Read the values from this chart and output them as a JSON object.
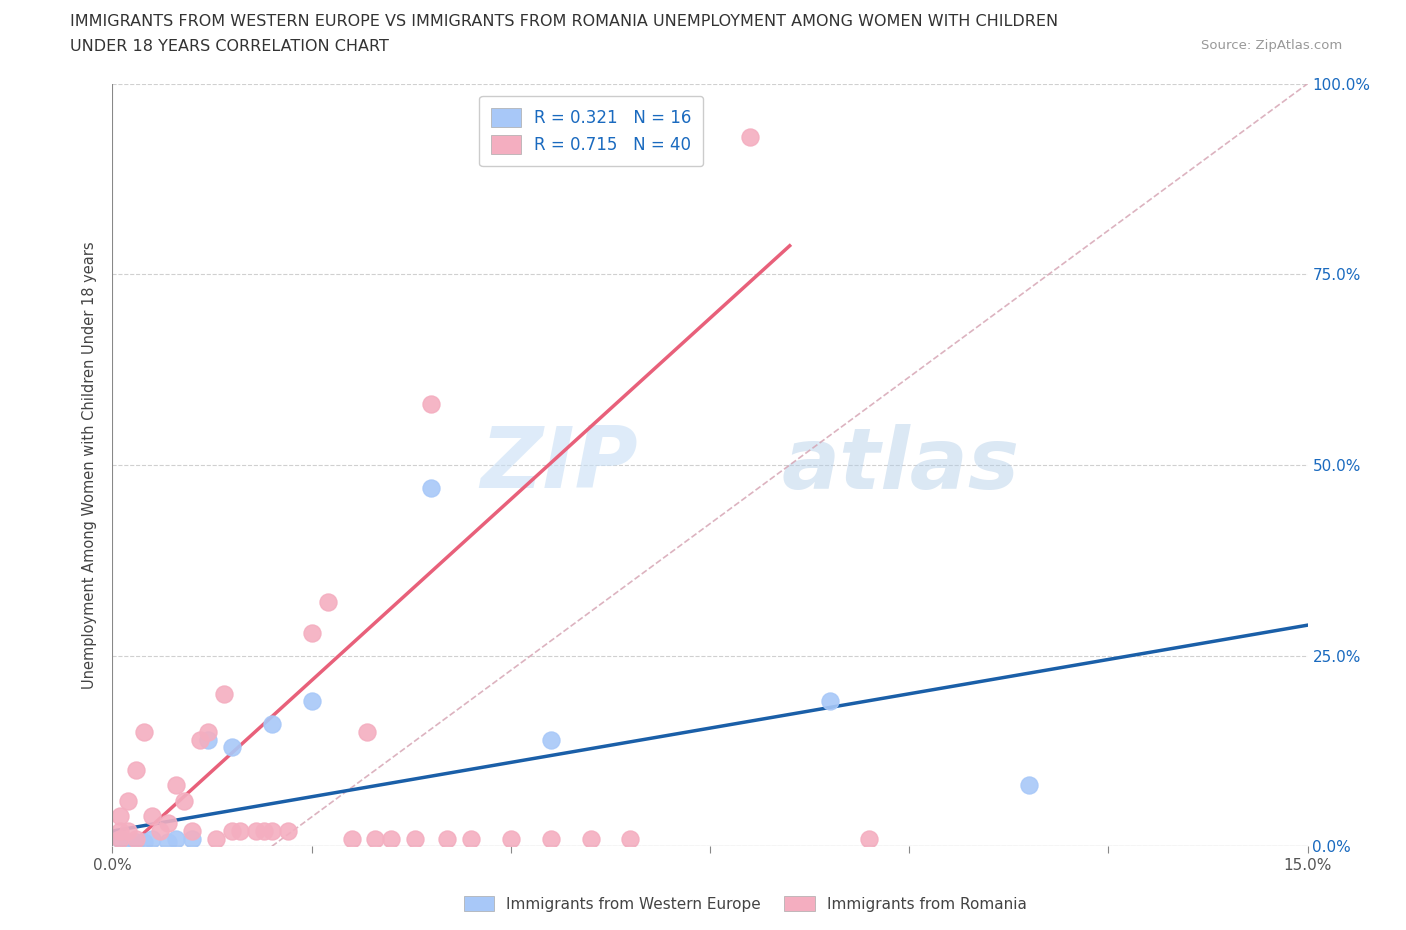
{
  "title_line1": "IMMIGRANTS FROM WESTERN EUROPE VS IMMIGRANTS FROM ROMANIA UNEMPLOYMENT AMONG WOMEN WITH CHILDREN",
  "title_line2": "UNDER 18 YEARS CORRELATION CHART",
  "source": "Source: ZipAtlas.com",
  "ylabel": "Unemployment Among Women with Children Under 18 years",
  "xlim": [
    0,
    0.15
  ],
  "ylim": [
    0,
    1.0
  ],
  "xticks": [
    0.0,
    0.025,
    0.05,
    0.075,
    0.1,
    0.125,
    0.15
  ],
  "yticks": [
    0.0,
    0.25,
    0.5,
    0.75,
    1.0
  ],
  "blue_color": "#a8c8f8",
  "pink_color": "#f4aec0",
  "blue_line_color": "#1a5fa8",
  "pink_line_color": "#e8607a",
  "diag_line_color": "#e8b0c0",
  "blue_R": 0.321,
  "blue_N": 16,
  "pink_R": 0.715,
  "pink_N": 40,
  "we_x": [
    0.001,
    0.002,
    0.003,
    0.004,
    0.005,
    0.007,
    0.008,
    0.01,
    0.012,
    0.015,
    0.02,
    0.025,
    0.04,
    0.055,
    0.09,
    0.115
  ],
  "we_y": [
    0.01,
    0.005,
    0.005,
    0.005,
    0.01,
    0.005,
    0.01,
    0.01,
    0.14,
    0.13,
    0.16,
    0.19,
    0.47,
    0.14,
    0.19,
    0.08
  ],
  "ro_x": [
    0.001,
    0.001,
    0.001,
    0.002,
    0.002,
    0.003,
    0.003,
    0.004,
    0.005,
    0.006,
    0.007,
    0.008,
    0.009,
    0.01,
    0.011,
    0.012,
    0.013,
    0.014,
    0.015,
    0.016,
    0.018,
    0.019,
    0.02,
    0.022,
    0.025,
    0.027,
    0.03,
    0.032,
    0.033,
    0.035,
    0.038,
    0.04,
    0.042,
    0.045,
    0.05,
    0.055,
    0.06,
    0.065,
    0.08,
    0.095
  ],
  "ro_y": [
    0.01,
    0.02,
    0.04,
    0.02,
    0.06,
    0.01,
    0.1,
    0.15,
    0.04,
    0.02,
    0.03,
    0.08,
    0.06,
    0.02,
    0.14,
    0.15,
    0.01,
    0.2,
    0.02,
    0.02,
    0.02,
    0.02,
    0.02,
    0.02,
    0.28,
    0.32,
    0.01,
    0.15,
    0.01,
    0.01,
    0.01,
    0.58,
    0.01,
    0.01,
    0.01,
    0.01,
    0.01,
    0.01,
    0.93,
    0.01
  ],
  "watermark_zip": "ZIP",
  "watermark_atlas": "atlas",
  "background_color": "#ffffff",
  "grid_color": "#d0d0d0",
  "legend_label_blue": "Immigrants from Western Europe",
  "legend_label_pink": "Immigrants from Romania"
}
